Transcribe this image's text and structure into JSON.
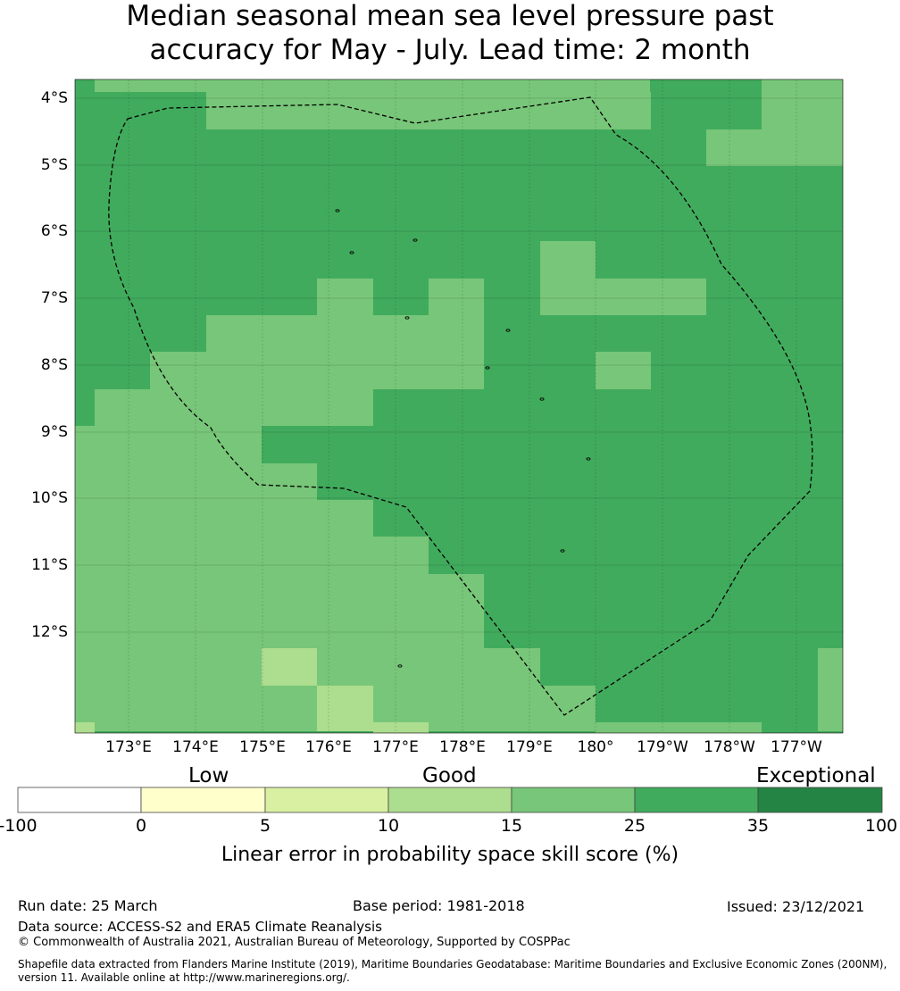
{
  "title": {
    "line1": "Median seasonal mean sea level pressure past",
    "line2": "accuracy for May - July. Lead time: 2 month"
  },
  "map": {
    "lon_labels": [
      "173°E",
      "174°E",
      "175°E",
      "176°E",
      "177°E",
      "178°E",
      "179°E",
      "180°",
      "179°W",
      "178°W",
      "177°W"
    ],
    "lat_labels": [
      "4°S",
      "5°S",
      "6°S",
      "7°S",
      "8°S",
      "9°S",
      "10°S",
      "11°S",
      "12°S"
    ],
    "colors": {
      "c5_10": "#d9f0a3",
      "c10_15": "#addd8e",
      "c15_25": "#78c679",
      "c25_35": "#41ab5d",
      "c35_100": "#238443"
    },
    "eez_boundary": "dashed",
    "grid": true
  },
  "colorbar": {
    "categories": [
      "Low",
      "Good",
      "Exceptional"
    ],
    "ticks": [
      "-100",
      "0",
      "5",
      "10",
      "15",
      "25",
      "35",
      "100"
    ],
    "colors": [
      "#ffffff",
      "#ffffcc",
      "#d9f0a3",
      "#addd8e",
      "#78c679",
      "#41ab5d",
      "#238443"
    ],
    "label": "Linear error in probability space skill score (%)"
  },
  "footer": {
    "run_date": "Run date: 25 March",
    "base_period": "Base period: 1981-2018",
    "issued": "Issued: 23/12/2021",
    "data_source": "Data source: ACCESS-S2 and ERA5 Climate Reanalysis",
    "copyright": "© Commonwealth of Australia 2021, Australian Bureau of Meteorology, Supported by COSPPac",
    "shapefile1": "Shapefile data extracted from Flanders Marine Institute (2019), Maritime Boundaries Geodatabase: Maritime Boundaries and Exclusive Economic Zones (200NM),",
    "shapefile2": "version 11. Available online at http://www.marineregions.org/."
  }
}
